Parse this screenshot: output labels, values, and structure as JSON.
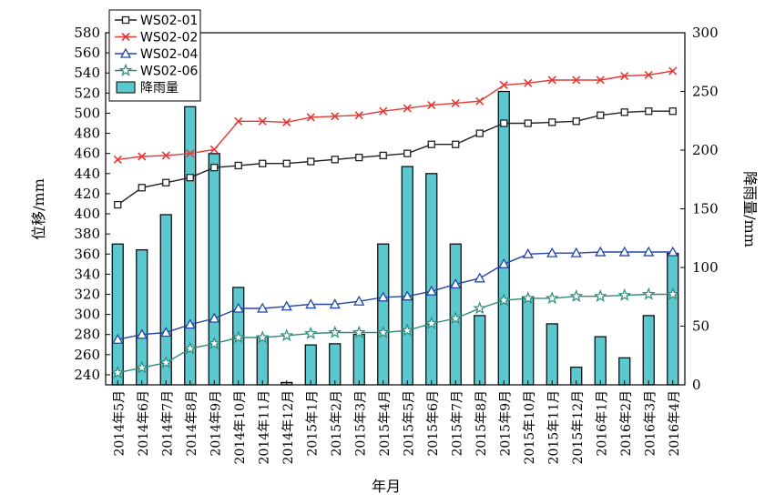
{
  "chart_data": {
    "type": "bar+line",
    "xlabel": "年月",
    "ylabel_left": "位移/mm",
    "ylabel_right": "降雨量/mm",
    "ylim_left": [
      230,
      580
    ],
    "ylim_right": [
      0,
      300
    ],
    "yticks_left": [
      "240",
      "260",
      "280",
      "300",
      "320",
      "340",
      "360",
      "380",
      "400",
      "420",
      "440",
      "460",
      "480",
      "500",
      "520",
      "540",
      "560",
      "580"
    ],
    "yticks_right": [
      "0",
      "50",
      "100",
      "150",
      "200",
      "250",
      "300"
    ],
    "categories": [
      "2014年5月",
      "2014年6月",
      "2014年7月",
      "2014年8月",
      "2014年9月",
      "2014年10月",
      "2014年11月",
      "2014年12月",
      "2015年1月",
      "2015年2月",
      "2015年3月",
      "2015年4月",
      "2015年5月",
      "2015年6月",
      "2015年7月",
      "2015年8月",
      "2015年9月",
      "2015年10月",
      "2015年11月",
      "2015年12月",
      "2016年1月",
      "2016年2月",
      "2016年3月",
      "2016年4月"
    ],
    "bars": {
      "name": "降雨量",
      "axis": "right",
      "color": "#5bc8cf",
      "values": [
        120,
        115,
        145,
        237,
        197,
        83,
        41,
        2,
        34,
        35,
        43,
        120,
        186,
        180,
        120,
        59,
        250,
        75,
        52,
        15,
        41,
        23,
        59,
        112
      ]
    },
    "series": [
      {
        "name": "WS02-01",
        "axis": "left",
        "color": "#222222",
        "marker": "square",
        "values": [
          409,
          426,
          431,
          436,
          446,
          448,
          450,
          450,
          452,
          454,
          456,
          458,
          460,
          469,
          469,
          480,
          490,
          490,
          491,
          492,
          498,
          501,
          502,
          502
        ]
      },
      {
        "name": "WS02-02",
        "axis": "left",
        "color": "#e53935",
        "marker": "x",
        "values": [
          454,
          457,
          458,
          460,
          464,
          492,
          492,
          491,
          496,
          497,
          498,
          502,
          505,
          508,
          510,
          512,
          528,
          530,
          533,
          533,
          533,
          537,
          538,
          542
        ]
      },
      {
        "name": "WS02-04",
        "axis": "left",
        "color": "#2446a8",
        "marker": "triangle",
        "values": [
          275,
          280,
          282,
          290,
          296,
          306,
          306,
          308,
          310,
          310,
          313,
          317,
          318,
          323,
          330,
          336,
          350,
          360,
          361,
          361,
          362,
          362,
          362,
          362
        ]
      },
      {
        "name": "WS02-06",
        "axis": "left",
        "color": "#2e8b7a",
        "marker": "star",
        "values": [
          242,
          247,
          252,
          266,
          271,
          277,
          277,
          279,
          281,
          282,
          282,
          282,
          284,
          291,
          296,
          306,
          314,
          316,
          316,
          318,
          318,
          319,
          320,
          320
        ]
      }
    ],
    "legend": {
      "placement": "top-left",
      "entries": [
        "WS02-01",
        "WS02-02",
        "WS02-04",
        "WS02-06",
        "降雨量"
      ]
    }
  }
}
